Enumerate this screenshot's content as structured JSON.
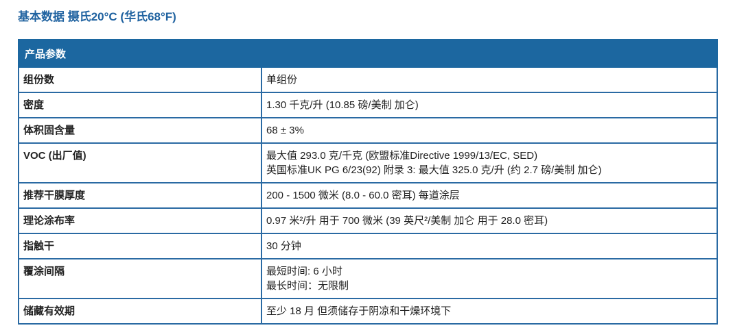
{
  "title": "基本数据 摄氏20°C (华氏68°F)",
  "table": {
    "header": "产品参数",
    "rows": [
      {
        "label": "组份数",
        "lines": [
          "单组份"
        ]
      },
      {
        "label": "密度",
        "lines": [
          "1.30 千克/升 (10.85 磅/美制 加仑)"
        ]
      },
      {
        "label": "体积固含量",
        "lines": [
          "68 ± 3%"
        ]
      },
      {
        "label": "VOC (出厂值)",
        "lines": [
          "最大值 293.0 克/千克 (欧盟标准Directive 1999/13/EC, SED)",
          "英国标准UK PG 6/23(92) 附录 3: 最大值 325.0 克/升 (约 2.7 磅/美制 加仑)"
        ]
      },
      {
        "label": "推荐干膜厚度",
        "lines": [
          "200 - 1500 微米 (8.0 - 60.0 密耳) 每道涂层"
        ]
      },
      {
        "label": "理论涂布率",
        "lines": [
          "0.97 米²/升 用于 700 微米 (39 英尺²/美制 加仑 用于 28.0 密耳)"
        ]
      },
      {
        "label": "指触干",
        "lines": [
          "30 分钟"
        ]
      },
      {
        "label": "覆涂间隔",
        "lines": [
          "最短时间: 6 小时",
          "最长时间：无限制"
        ]
      },
      {
        "label": "储藏有效期",
        "lines": [
          "至少 18 月 但须储存于阴凉和干燥环境下"
        ]
      }
    ]
  }
}
